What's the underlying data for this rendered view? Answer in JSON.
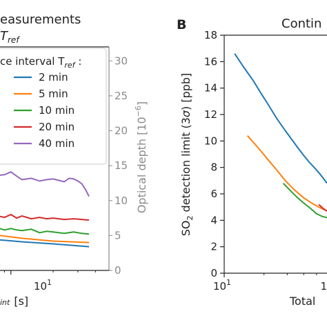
{
  "chart_data": [
    {
      "type": "line",
      "title_lines": [
        "easurements",
        "T"
      ],
      "title_sub": "ref",
      "xlabel_sub": "int",
      "xlabel_unit": "[s]",
      "xscale": "log",
      "xlim": [
        2.2,
        50
      ],
      "x_tick_label": "10",
      "x_tick_exp": "1",
      "ylim": [
        0,
        32
      ],
      "secondary_y": {
        "label": "Optical depth [10",
        "label_exp": "−6",
        "label_end": "]",
        "ticks": [
          0,
          5,
          10,
          15,
          20,
          25,
          30
        ],
        "color": "#8a8a8a"
      },
      "legend": {
        "title": "ce interval T",
        "title_sub": "ref",
        "title_end": " :",
        "placement": "upper-left"
      },
      "series": [
        {
          "name": "2 min",
          "color": "#1f77b4",
          "x": [
            2.2,
            4,
            7,
            12,
            20,
            36
          ],
          "y": [
            5.6,
            5.0,
            4.5,
            4.1,
            3.8,
            3.4
          ]
        },
        {
          "name": "5 min",
          "color": "#ff7f0e",
          "x": [
            2.2,
            4,
            7,
            12,
            20,
            36
          ],
          "y": [
            6.5,
            5.8,
            5.2,
            4.6,
            4.2,
            4.0
          ]
        },
        {
          "name": "10 min",
          "color": "#2ca02c",
          "x": [
            2.2,
            3,
            4,
            5,
            6,
            7,
            8,
            9,
            10,
            11,
            12,
            14,
            16,
            18,
            20,
            24,
            28,
            32,
            36
          ],
          "y": [
            7.2,
            6.9,
            6.7,
            6.3,
            6.2,
            6.0,
            6.1,
            5.8,
            6.0,
            5.8,
            5.7,
            5.9,
            5.4,
            5.6,
            5.5,
            5.3,
            5.5,
            5.3,
            5.2
          ]
        },
        {
          "name": "20 min",
          "color": "#d62728",
          "x": [
            2.2,
            3,
            4,
            5,
            6,
            7,
            8,
            9,
            10,
            11,
            12,
            14,
            16,
            18,
            20,
            24,
            28,
            32,
            36
          ],
          "y": [
            8.5,
            8.3,
            8.1,
            7.8,
            8.0,
            7.7,
            7.8,
            7.6,
            8.0,
            7.5,
            7.8,
            7.4,
            7.6,
            7.4,
            7.5,
            7.3,
            7.4,
            7.3,
            7.2
          ]
        },
        {
          "name": "40 min",
          "color": "#9467bd",
          "x": [
            2.2,
            3,
            4,
            5,
            6,
            7,
            8,
            9,
            10,
            11,
            12,
            14,
            16,
            18,
            20,
            24,
            26,
            28,
            30,
            32,
            34,
            36
          ],
          "y": [
            12.6,
            12.6,
            12.8,
            13.0,
            12.9,
            13.3,
            13.6,
            13.7,
            14.1,
            13.5,
            13.0,
            13.2,
            12.8,
            13.0,
            13.1,
            12.7,
            13.2,
            13.1,
            12.8,
            12.4,
            11.6,
            10.6
          ]
        }
      ]
    },
    {
      "type": "line",
      "panel_letter": "B",
      "title": "Contin",
      "ylabel_prefix": "SO",
      "ylabel_sub": "2",
      "ylabel_rest": " detection limit (3",
      "ylabel_sigma": "σ",
      "ylabel_end": ") [ppb]",
      "xlabel": "Total",
      "xscale": "log",
      "xlim": [
        10,
        60
      ],
      "x_tick_label": "10",
      "x_tick_exp": "1",
      "x_tick_partial": "1",
      "ylim": [
        0,
        18
      ],
      "yticks": [
        0,
        2,
        4,
        6,
        8,
        10,
        12,
        14,
        16,
        18
      ],
      "series": [
        {
          "color": "#1f77b4",
          "x": [
            12,
            14,
            16.5,
            19,
            22,
            25,
            28,
            32,
            36,
            40,
            44,
            48,
            52,
            56,
            60
          ],
          "y": [
            16.6,
            15.6,
            14.6,
            13.6,
            12.6,
            11.7,
            11.0,
            10.2,
            9.5,
            8.9,
            8.4,
            8.0,
            7.6,
            7.2,
            6.8
          ]
        },
        {
          "color": "#ff7f0e",
          "x": [
            15,
            18,
            21,
            25,
            29,
            34,
            40,
            46,
            52,
            60
          ],
          "y": [
            10.4,
            9.5,
            8.7,
            7.8,
            7.0,
            6.3,
            5.7,
            5.3,
            5.0,
            4.7
          ]
        },
        {
          "color": "#2ca02c",
          "x": [
            28,
            32,
            36,
            40,
            45,
            50,
            55,
            60
          ],
          "y": [
            6.8,
            6.2,
            5.7,
            5.3,
            4.9,
            4.5,
            4.3,
            4.2
          ]
        },
        {
          "color": "#d62728",
          "x": [
            52,
            56,
            60
          ],
          "y": [
            5.2,
            4.9,
            4.7
          ]
        }
      ]
    }
  ]
}
